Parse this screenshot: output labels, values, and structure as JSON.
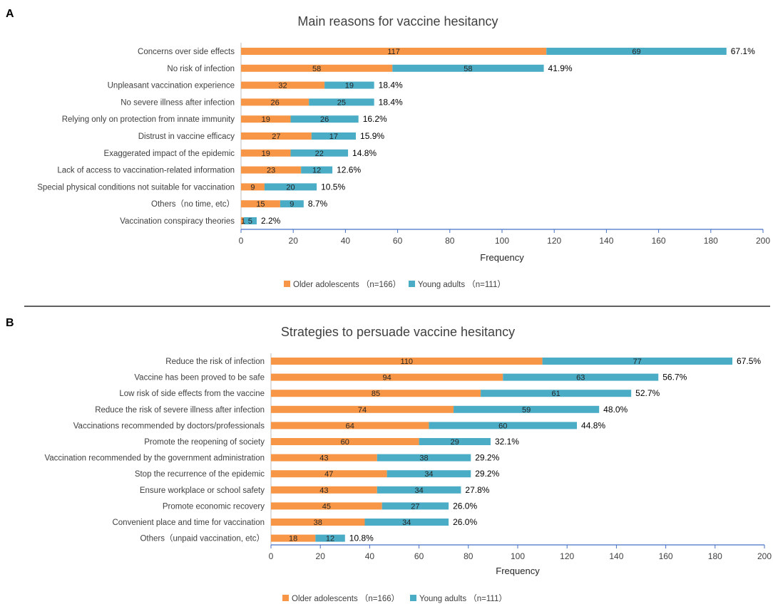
{
  "colors": {
    "older": "#F79646",
    "young": "#4BACC6",
    "axis": "#BFBFBF",
    "axis_blue": "#4472C4",
    "text": "#404040",
    "divider": "#000000"
  },
  "chart_data": [
    {
      "type": "bar",
      "orientation": "horizontal",
      "stacked": true,
      "panel_label": "A",
      "title": "Main reasons for vaccine hesitancy",
      "xlabel": "Frequency",
      "ylabel": "",
      "xlim": [
        0,
        200
      ],
      "xticks": [
        0,
        20,
        40,
        60,
        80,
        100,
        120,
        140,
        160,
        180,
        200
      ],
      "legend_position": "bottom",
      "categories": [
        "Concerns over side effects",
        "No risk of infection",
        "Unpleasant vaccination experience",
        "No severe illness after infection",
        "Relying only on protection from innate immunity",
        "Distrust in vaccine efficacy",
        "Exaggerated impact of the epidemic",
        "Lack of access to vaccination-related information",
        "Special physical conditions not suitable for vaccination",
        "Others（no time, etc）",
        "Vaccination conspiracy theories"
      ],
      "series": [
        {
          "name": "Older adolescents （n=166）",
          "key": "older",
          "values": [
            117,
            58,
            32,
            26,
            19,
            27,
            19,
            23,
            9,
            15,
            1
          ]
        },
        {
          "name": "Young adults （n=111）",
          "key": "young",
          "values": [
            69,
            58,
            19,
            25,
            26,
            17,
            22,
            12,
            20,
            9,
            5
          ]
        }
      ],
      "percent_labels": [
        "67.1%",
        "41.9%",
        "18.4%",
        "18.4%",
        "16.2%",
        "15.9%",
        "14.8%",
        "12.6%",
        "10.5%",
        "8.7%",
        "2.2%"
      ]
    },
    {
      "type": "bar",
      "orientation": "horizontal",
      "stacked": true,
      "panel_label": "B",
      "title": "Strategies to persuade vaccine hesitancy",
      "xlabel": "Frequency",
      "ylabel": "",
      "xlim": [
        0,
        200
      ],
      "xticks": [
        0,
        20,
        40,
        60,
        80,
        100,
        120,
        140,
        160,
        180,
        200
      ],
      "legend_position": "bottom",
      "categories": [
        "Reduce the risk of infection",
        "Vaccine has been proved to be safe",
        "Low risk of side effects from the vaccine",
        "Reduce the risk of severe illness after infection",
        "Vaccinations recommended by doctors/professionals",
        "Promote the reopening of society",
        "Vaccination recommended by the government administration",
        "Stop the recurrence of the epidemic",
        "Ensure workplace or school safety",
        "Promote economic recovery",
        "Convenient place and time for vaccination",
        "Others（unpaid vaccination, etc）"
      ],
      "series": [
        {
          "name": "Older adolescents （n=166）",
          "key": "older",
          "values": [
            110,
            94,
            85,
            74,
            64,
            60,
            43,
            47,
            43,
            45,
            38,
            18
          ]
        },
        {
          "name": "Young adults （n=111）",
          "key": "young",
          "values": [
            77,
            63,
            61,
            59,
            60,
            29,
            38,
            34,
            34,
            27,
            34,
            12
          ]
        }
      ],
      "percent_labels": [
        "67.5%",
        "56.7%",
        "52.7%",
        "48.0%",
        "44.8%",
        "32.1%",
        "29.2%",
        "29.2%",
        "27.8%",
        "26.0%",
        "26.0%",
        "10.8%"
      ]
    }
  ]
}
